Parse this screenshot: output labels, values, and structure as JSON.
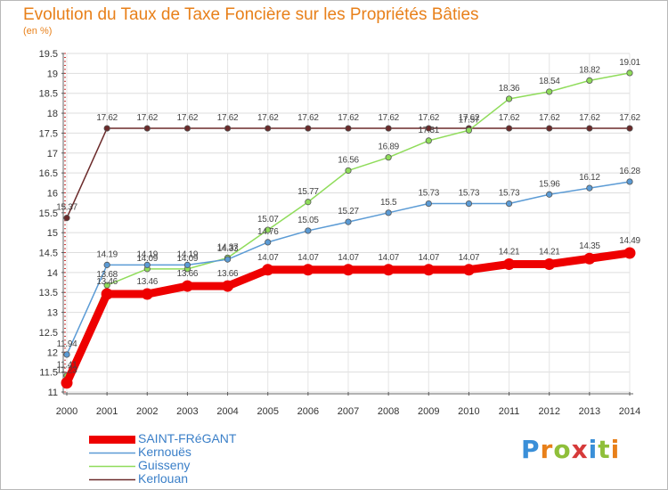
{
  "title": "Evolution du Taux de Taxe Foncière sur les Propriétés Bâties",
  "subtitle": "(en %)",
  "logo_text": "Proxiti",
  "chart_data": {
    "type": "line",
    "title": "Evolution du Taux de Taxe Foncière sur les Propriétés Bâties",
    "ylabel": "(en %)",
    "x": [
      "2000",
      "2001",
      "2002",
      "2003",
      "2004",
      "2005",
      "2006",
      "2007",
      "2008",
      "2009",
      "2010",
      "2011",
      "2012",
      "2013",
      "2014"
    ],
    "ylim": [
      11,
      19.5
    ],
    "yticks": [
      "11",
      "11.5",
      "12",
      "12.5",
      "13",
      "13.5",
      "14",
      "14.5",
      "15",
      "15.5",
      "16",
      "16.5",
      "17",
      "17.5",
      "18",
      "18.5",
      "19",
      "19.5"
    ],
    "grid": true,
    "legend_position": "bottom-left",
    "series": [
      {
        "name": "SAINT-FRéGANT",
        "color": "#ee0000",
        "values": [
          11.23,
          13.46,
          13.46,
          13.66,
          13.66,
          14.07,
          14.07,
          14.07,
          14.07,
          14.07,
          14.07,
          14.21,
          14.21,
          14.35,
          14.49
        ],
        "labels": [
          "11.23",
          "13.46",
          "13.46",
          "13.66",
          "13.66",
          "14.07",
          "14.07",
          "14.07",
          "14.07",
          "14.07",
          "14.07",
          "14.21",
          "14.21",
          "14.35",
          "14.49"
        ]
      },
      {
        "name": "Kernouës",
        "color": "#5b9bd5",
        "values": [
          11.94,
          14.19,
          14.19,
          14.19,
          14.33,
          14.76,
          15.05,
          15.27,
          15.5,
          15.73,
          15.73,
          15.73,
          15.96,
          16.12,
          16.28
        ],
        "labels": [
          "11.94",
          "14.19",
          "14.19",
          "14.19",
          "14.33",
          "14.76",
          "15.05",
          "15.27",
          "15.5",
          "15.73",
          "15.73",
          "15.73",
          "15.96",
          "16.12",
          "16.28"
        ]
      },
      {
        "name": "Guisseny",
        "color": "#8fdc5a",
        "values": [
          11.41,
          13.68,
          14.09,
          14.09,
          14.37,
          15.07,
          15.77,
          16.56,
          16.89,
          17.31,
          17.57,
          18.36,
          18.54,
          18.82,
          19.01
        ],
        "labels": [
          "11.41",
          "13.68",
          "14.09",
          "14.09",
          "14.37",
          "15.07",
          "15.77",
          "16.56",
          "16.89",
          "17.31",
          "17.57",
          "18.36",
          "18.54",
          "18.82",
          "19.01"
        ]
      },
      {
        "name": "Kerlouan",
        "color": "#6b2a2a",
        "values": [
          15.37,
          17.62,
          17.62,
          17.62,
          17.62,
          17.62,
          17.62,
          17.62,
          17.62,
          17.62,
          17.62,
          17.62,
          17.62,
          17.62,
          17.62
        ],
        "labels": [
          "15.37",
          "17.62",
          "17.62",
          "17.62",
          "17.62",
          "17.62",
          "17.62",
          "17.62",
          "17.62",
          "17.62",
          "17.62",
          "17.62",
          "17.62",
          "17.62",
          "17.62"
        ]
      }
    ]
  }
}
